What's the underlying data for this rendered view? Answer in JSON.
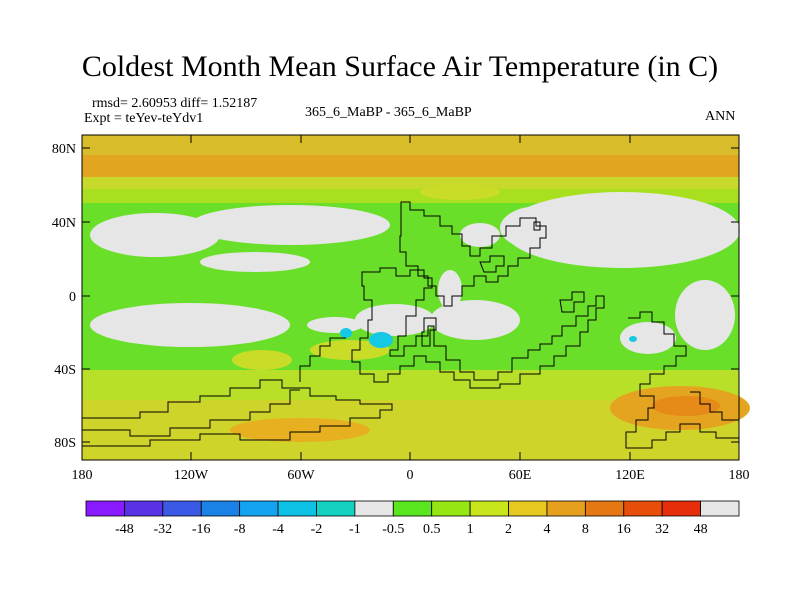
{
  "title": "Coldest Month Mean Surface Air Temperature (in C)",
  "stats": "rmsd= 2.60953 diff= 1.52187",
  "expt": "Expt = teYev-teYdv1",
  "center_label": "365_6_MaBP - 365_6_MaBP",
  "season": "ANN",
  "lat_labels": [
    "80N",
    "40N",
    "0",
    "40S",
    "80S"
  ],
  "lon_labels": [
    "180",
    "120W",
    "60W",
    "0",
    "60E",
    "120E",
    "180"
  ],
  "colorbar": {
    "labels": [
      "-48",
      "-32",
      "-16",
      "-8",
      "-4",
      "-2",
      "-1",
      "-0.5",
      "0.5",
      "1",
      "2",
      "4",
      "8",
      "16",
      "32",
      "48"
    ],
    "colors": [
      "#8a1aff",
      "#5a32e6",
      "#3a5ae6",
      "#1a82e6",
      "#12a4f0",
      "#0ec2e6",
      "#14d2c2",
      "#e6e6e6",
      "#5ae61e",
      "#96e614",
      "#c8e61a",
      "#e6c81e",
      "#e6a01e",
      "#e67814",
      "#e64e0a",
      "#e62e0a",
      "#e6e6e6"
    ]
  }
}
